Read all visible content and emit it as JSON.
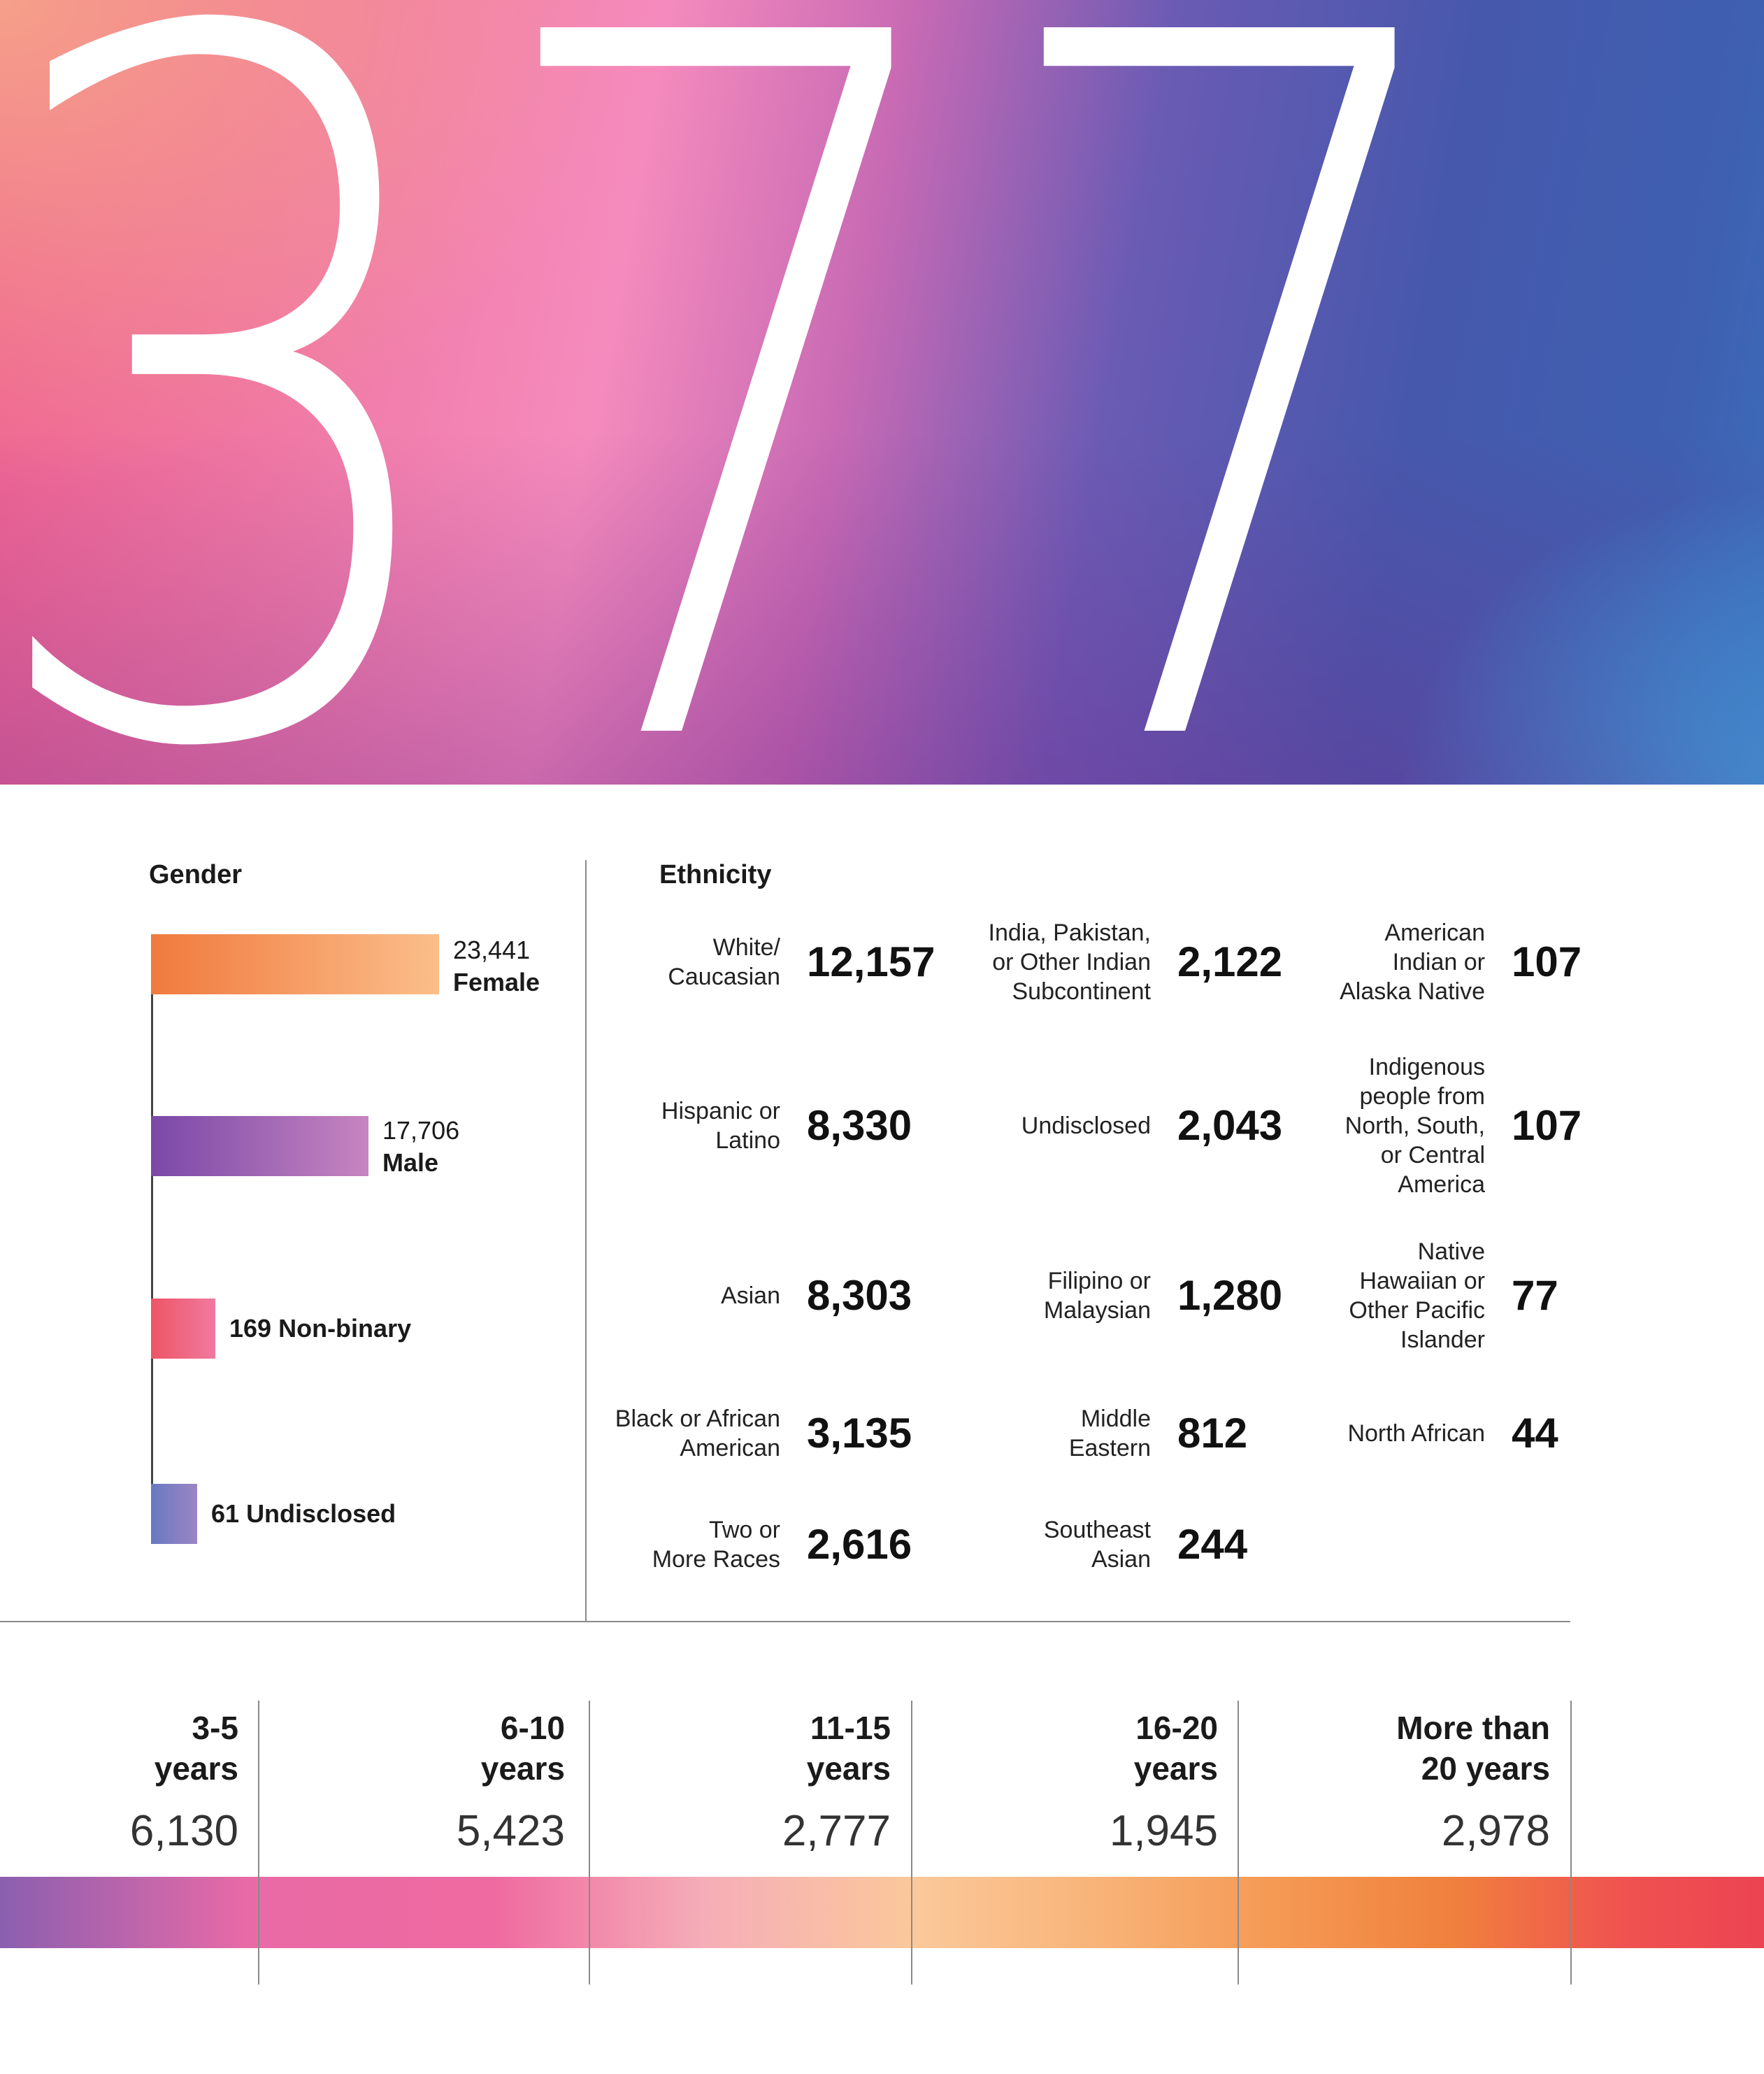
{
  "hero": {
    "number": "377"
  },
  "chart_data": [
    {
      "type": "bar",
      "title": "Gender",
      "categories": [
        "Female",
        "Male",
        "Non-binary",
        "Undisclosed"
      ],
      "values": [
        23441,
        17706,
        169,
        61
      ],
      "value_labels": [
        "23,441",
        "17,706",
        "169",
        "61"
      ],
      "xlim": [
        0,
        23441
      ]
    },
    {
      "type": "table",
      "title": "Ethnicity",
      "columns": [
        [
          {
            "label": "White/\nCaucasian",
            "value": "12,157"
          },
          {
            "label": "Hispanic or\nLatino",
            "value": "8,330"
          },
          {
            "label": "Asian",
            "value": "8,303"
          },
          {
            "label": "Black or African\nAmerican",
            "value": "3,135"
          },
          {
            "label": "Two or\nMore Races",
            "value": "2,616"
          }
        ],
        [
          {
            "label": "India, Pakistan,\nor Other Indian\nSubcontinent",
            "value": "2,122"
          },
          {
            "label": "Undisclosed",
            "value": "2,043"
          },
          {
            "label": "Filipino or\nMalaysian",
            "value": "1,280"
          },
          {
            "label": "Middle\nEastern",
            "value": "812"
          },
          {
            "label": "Southeast\nAsian",
            "value": "244"
          }
        ],
        [
          {
            "label": "American\nIndian or\nAlaska Native",
            "value": "107"
          },
          {
            "label": "Indigenous\npeople from\nNorth, South,\nor Central\nAmerica",
            "value": "107"
          },
          {
            "label": "Native\nHawaiian or\nOther Pacific\nIslander",
            "value": "77"
          },
          {
            "label": "North African",
            "value": "44"
          }
        ]
      ]
    },
    {
      "type": "table",
      "categories": [
        "3-5\nyears",
        "6-10\nyears",
        "11-15\nyears",
        "16-20\nyears",
        "More than\n20 years"
      ],
      "values": [
        "6,130",
        "5,423",
        "2,777",
        "1,945",
        "2,978"
      ]
    }
  ],
  "colors": {
    "female": [
      "#f07a3e",
      "#fbbe8a"
    ],
    "male": [
      "#7a48a8",
      "#c785c0"
    ],
    "nonbinary": [
      "#ee5566",
      "#f07aa0"
    ],
    "undisclosed": [
      "#6a78c2",
      "#9a86c4"
    ]
  }
}
